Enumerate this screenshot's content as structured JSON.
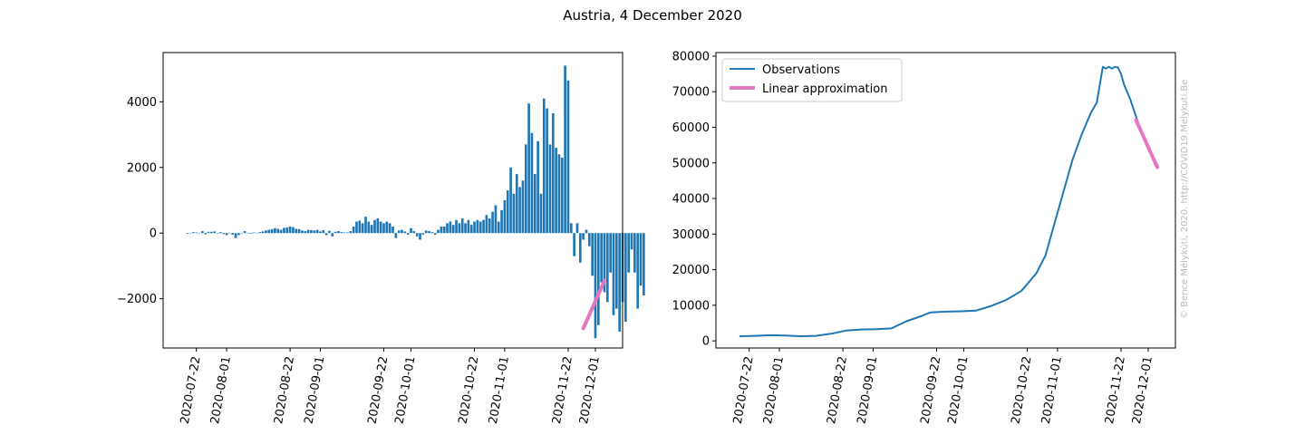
{
  "figure": {
    "title": "Austria, 4 December 2020",
    "watermark": "© Bence Mélykúti, 2020. http://COVID19.Melykuti.Be"
  },
  "colors": {
    "bars": "#1f77b4",
    "observations": "#1f77b4",
    "approximation": "#e377c2",
    "axis": "#000000"
  },
  "chart_data": [
    {
      "type": "bar",
      "title": "",
      "xlabel": "",
      "ylabel": "",
      "x_start": "2020-07-19",
      "x_end": "2020-12-04",
      "xlim": [
        "2020-07-11",
        "2020-12-10"
      ],
      "ylim": [
        -3500,
        5500
      ],
      "xticks": [
        "2020-07-22",
        "2020-08-01",
        "2020-08-22",
        "2020-09-01",
        "2020-09-22",
        "2020-10-01",
        "2020-10-22",
        "2020-11-01",
        "2020-11-22",
        "2020-12-01"
      ],
      "yticks": [
        -2000,
        0,
        2000,
        4000
      ],
      "values": [
        -20,
        10,
        30,
        20,
        10,
        60,
        -40,
        40,
        40,
        50,
        -10,
        30,
        -30,
        -60,
        10,
        -50,
        -150,
        -60,
        -10,
        60,
        10,
        -20,
        20,
        10,
        30,
        50,
        80,
        100,
        120,
        150,
        130,
        100,
        160,
        170,
        200,
        180,
        130,
        120,
        80,
        60,
        100,
        90,
        80,
        100,
        50,
        90,
        -60,
        70,
        -100,
        40,
        60,
        30,
        20,
        20,
        60,
        200,
        350,
        380,
        300,
        500,
        350,
        250,
        400,
        450,
        350,
        300,
        350,
        300,
        200,
        -150,
        80,
        100,
        50,
        -50,
        150,
        60,
        -100,
        -200,
        -50,
        80,
        60,
        30,
        -50,
        100,
        200,
        200,
        300,
        350,
        250,
        400,
        300,
        450,
        300,
        400,
        250,
        350,
        400,
        350,
        400,
        550,
        450,
        650,
        850,
        350,
        700,
        1000,
        1300,
        2000,
        1200,
        1800,
        1400,
        1600,
        2700,
        3950,
        3050,
        1800,
        2800,
        1200,
        4100,
        3800,
        2700,
        3650,
        2600,
        2400,
        2300,
        5100,
        4650,
        300,
        -700,
        300,
        -900,
        -200,
        100,
        -400,
        -1300,
        -3200,
        -2800,
        -1500,
        -1800,
        -2100,
        -1200,
        -2500,
        -2300,
        -3000,
        -2100,
        -2700,
        -1200,
        -500,
        -1200,
        -2300,
        -1600,
        -1900
      ],
      "approximation": {
        "name": "Linear approximation",
        "x": [
          "2020-11-27",
          "2020-12-04"
        ],
        "y": [
          -2900,
          -1450
        ]
      }
    },
    {
      "type": "line",
      "title": "",
      "xlabel": "",
      "ylabel": "",
      "xlim": [
        "2020-07-11",
        "2020-12-10"
      ],
      "ylim": [
        -2000,
        81000
      ],
      "xticks": [
        "2020-07-22",
        "2020-08-01",
        "2020-08-22",
        "2020-09-01",
        "2020-09-22",
        "2020-10-01",
        "2020-10-22",
        "2020-11-01",
        "2020-11-22",
        "2020-12-01"
      ],
      "yticks": [
        0,
        10000,
        20000,
        30000,
        40000,
        50000,
        60000,
        70000,
        80000
      ],
      "legend_position": "top-left",
      "series": [
        {
          "name": "Observations",
          "x": [
            "2020-07-19",
            "2020-07-24",
            "2020-07-29",
            "2020-08-03",
            "2020-08-08",
            "2020-08-13",
            "2020-08-18",
            "2020-08-23",
            "2020-08-28",
            "2020-09-02",
            "2020-09-07",
            "2020-09-12",
            "2020-09-17",
            "2020-09-20",
            "2020-09-25",
            "2020-09-30",
            "2020-10-05",
            "2020-10-10",
            "2020-10-15",
            "2020-10-20",
            "2020-10-25",
            "2020-10-28",
            "2020-10-31",
            "2020-11-03",
            "2020-11-06",
            "2020-11-09",
            "2020-11-12",
            "2020-11-14",
            "2020-11-15",
            "2020-11-16",
            "2020-11-17",
            "2020-11-18",
            "2020-11-19",
            "2020-11-20",
            "2020-11-21",
            "2020-11-22",
            "2020-11-23",
            "2020-11-25",
            "2020-11-27",
            "2020-11-29",
            "2020-12-01",
            "2020-12-03",
            "2020-12-04"
          ],
          "y": [
            1300,
            1400,
            1600,
            1500,
            1300,
            1400,
            2000,
            2900,
            3200,
            3300,
            3500,
            5500,
            7000,
            8000,
            8200,
            8300,
            8500,
            9800,
            11500,
            14000,
            19000,
            24000,
            33000,
            42000,
            51000,
            58000,
            64000,
            67000,
            72000,
            77000,
            76500,
            77000,
            76500,
            77000,
            76800,
            75000,
            72000,
            68000,
            63000,
            58000,
            54000,
            51000,
            49500
          ]
        },
        {
          "name": "Linear approximation",
          "x": [
            "2020-11-27",
            "2020-12-04"
          ],
          "y": [
            62000,
            48800
          ]
        }
      ]
    }
  ]
}
